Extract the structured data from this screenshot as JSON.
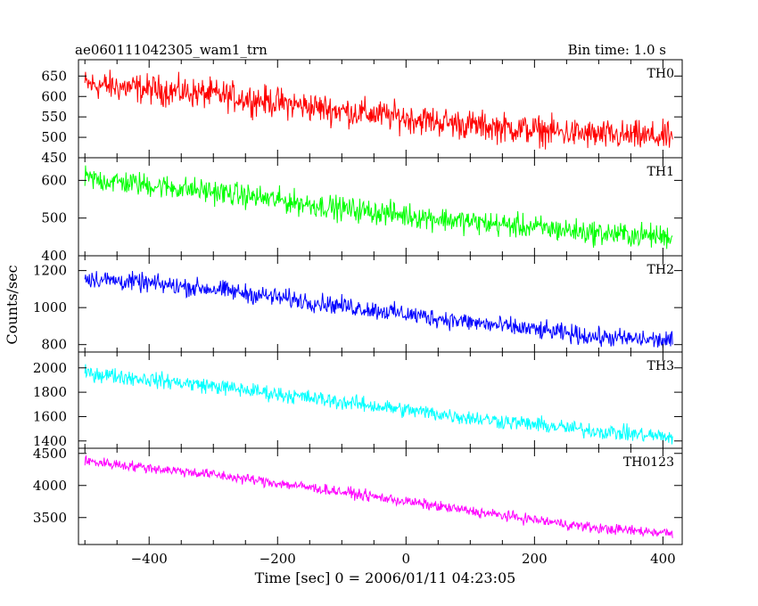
{
  "header": {
    "title": "ae060111042305_wam1_trn",
    "bin_time": "Bin time: 1.0 s"
  },
  "chart_data": {
    "type": "line",
    "xlabel": "Time [sec] 0 = 2006/01/11 04:23:05",
    "ylabel": "Counts/sec",
    "xlim": [
      -510,
      430
    ],
    "x_ticks": [
      -400,
      -200,
      0,
      200,
      400
    ],
    "x_range": [
      -500,
      415
    ],
    "x_step": 1,
    "grid": false,
    "panels": [
      {
        "name": "TH0",
        "color": "#ff0000",
        "ylim": [
          450,
          690
        ],
        "y_ticks": [
          450,
          500,
          550,
          600,
          650
        ],
        "trend": [
          [
            -500,
            630
          ],
          [
            -300,
            605
          ],
          [
            -100,
            565
          ],
          [
            100,
            530
          ],
          [
            300,
            505
          ],
          [
            415,
            500
          ]
        ],
        "noise": 40
      },
      {
        "name": "TH1",
        "color": "#00ff00",
        "ylim": [
          400,
          660
        ],
        "y_ticks": [
          400,
          500,
          600
        ],
        "trend": [
          [
            -500,
            605
          ],
          [
            -300,
            570
          ],
          [
            -100,
            525
          ],
          [
            100,
            490
          ],
          [
            300,
            460
          ],
          [
            415,
            450
          ]
        ],
        "noise": 35
      },
      {
        "name": "TH2",
        "color": "#0000ff",
        "ylim": [
          760,
          1280
        ],
        "y_ticks": [
          800,
          1000,
          1200
        ],
        "trend": [
          [
            -500,
            1160
          ],
          [
            -300,
            1100
          ],
          [
            -100,
            1010
          ],
          [
            100,
            920
          ],
          [
            300,
            840
          ],
          [
            415,
            820
          ]
        ],
        "noise": 55
      },
      {
        "name": "TH3",
        "color": "#00ffff",
        "ylim": [
          1340,
          2130
        ],
        "y_ticks": [
          1400,
          1600,
          1800,
          2000
        ],
        "trend": [
          [
            -500,
            1960
          ],
          [
            -300,
            1850
          ],
          [
            -100,
            1720
          ],
          [
            100,
            1590
          ],
          [
            300,
            1480
          ],
          [
            415,
            1430
          ]
        ],
        "noise": 70
      },
      {
        "name": "TH0123",
        "color": "#ff00ff",
        "ylim": [
          3080,
          4580
        ],
        "y_ticks": [
          3500,
          4000,
          4500
        ],
        "trend": [
          [
            -500,
            4380
          ],
          [
            -300,
            4170
          ],
          [
            -100,
            3900
          ],
          [
            100,
            3600
          ],
          [
            300,
            3330
          ],
          [
            415,
            3260
          ]
        ],
        "noise": 90
      }
    ]
  }
}
